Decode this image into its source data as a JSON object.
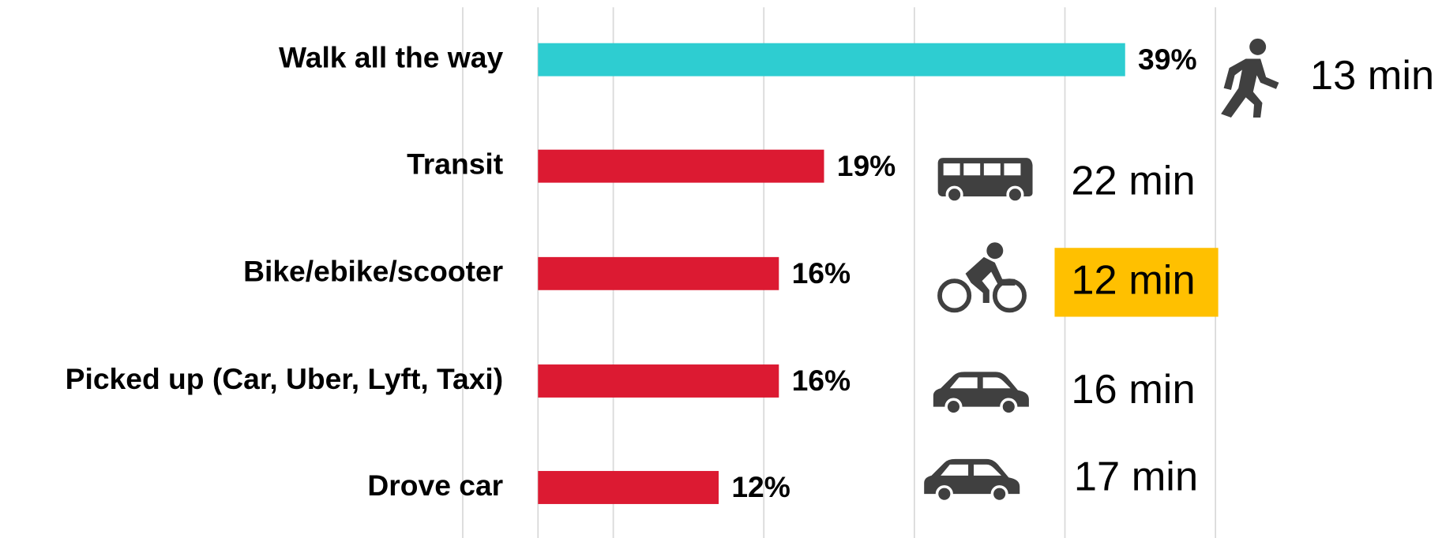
{
  "chart_data": {
    "type": "barh",
    "categories": [
      "Walk all the way",
      "Transit",
      "Bike/ebike/scooter",
      "Picked up (Car, Uber, Lyft, Taxi)",
      "Drove car"
    ],
    "values": [
      39,
      19,
      16,
      16,
      12
    ],
    "value_labels": [
      "39%",
      "19%",
      "16%",
      "16%",
      "12%"
    ],
    "colors": [
      "#2ecdd1",
      "#dc1a32",
      "#dc1a32",
      "#dc1a32",
      "#dc1a32"
    ],
    "xlim": [
      -5,
      45
    ],
    "xticks": [
      -5,
      5,
      15,
      25,
      35,
      45
    ],
    "grid": true,
    "travel_times": {
      "labels": [
        "13 min",
        "22 min",
        "12 min",
        "16 min",
        "17 min"
      ],
      "highlight_index": 2,
      "highlight_color": "#ffc000"
    }
  }
}
